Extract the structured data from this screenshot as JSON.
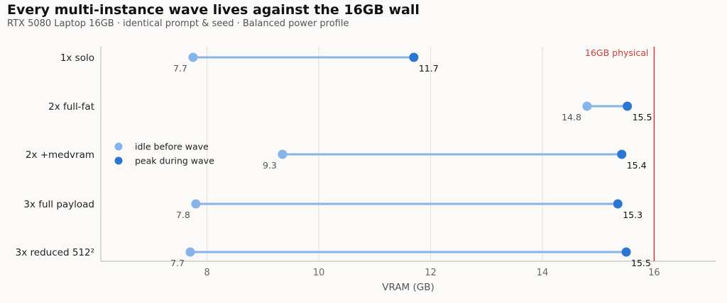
{
  "title": "Every multi-instance wave lives against the 16GB wall",
  "subtitle": "RTX 5080 Laptop 16GB · identical prompt & seed · Balanced power profile",
  "chart_data": {
    "type": "dumbbell",
    "xlabel": "VRAM (GB)",
    "ylabel": "",
    "xlim": [
      6.1,
      17.1
    ],
    "xticks": [
      8,
      10,
      12,
      14,
      16
    ],
    "grid": "vertical",
    "legend_placement": "middle-left",
    "categories": [
      "1x solo",
      "2x full-fat",
      "2x +medvram",
      "3x full payload",
      "3x reduced 512²"
    ],
    "series": [
      {
        "name": "idle before wave",
        "color": "#86b4ea",
        "values": [
          7.7,
          14.8,
          9.3,
          7.8,
          7.7
        ],
        "x": [
          7.75,
          14.8,
          9.35,
          7.8,
          7.7
        ]
      },
      {
        "name": "peak during wave",
        "color": "#2a76d2",
        "values": [
          11.7,
          15.5,
          15.4,
          15.3,
          15.5
        ],
        "x": [
          11.7,
          15.52,
          15.42,
          15.35,
          15.5
        ]
      }
    ],
    "reference_line": {
      "x": 16,
      "label": "16GB physical",
      "color": "#d13a3a"
    }
  }
}
